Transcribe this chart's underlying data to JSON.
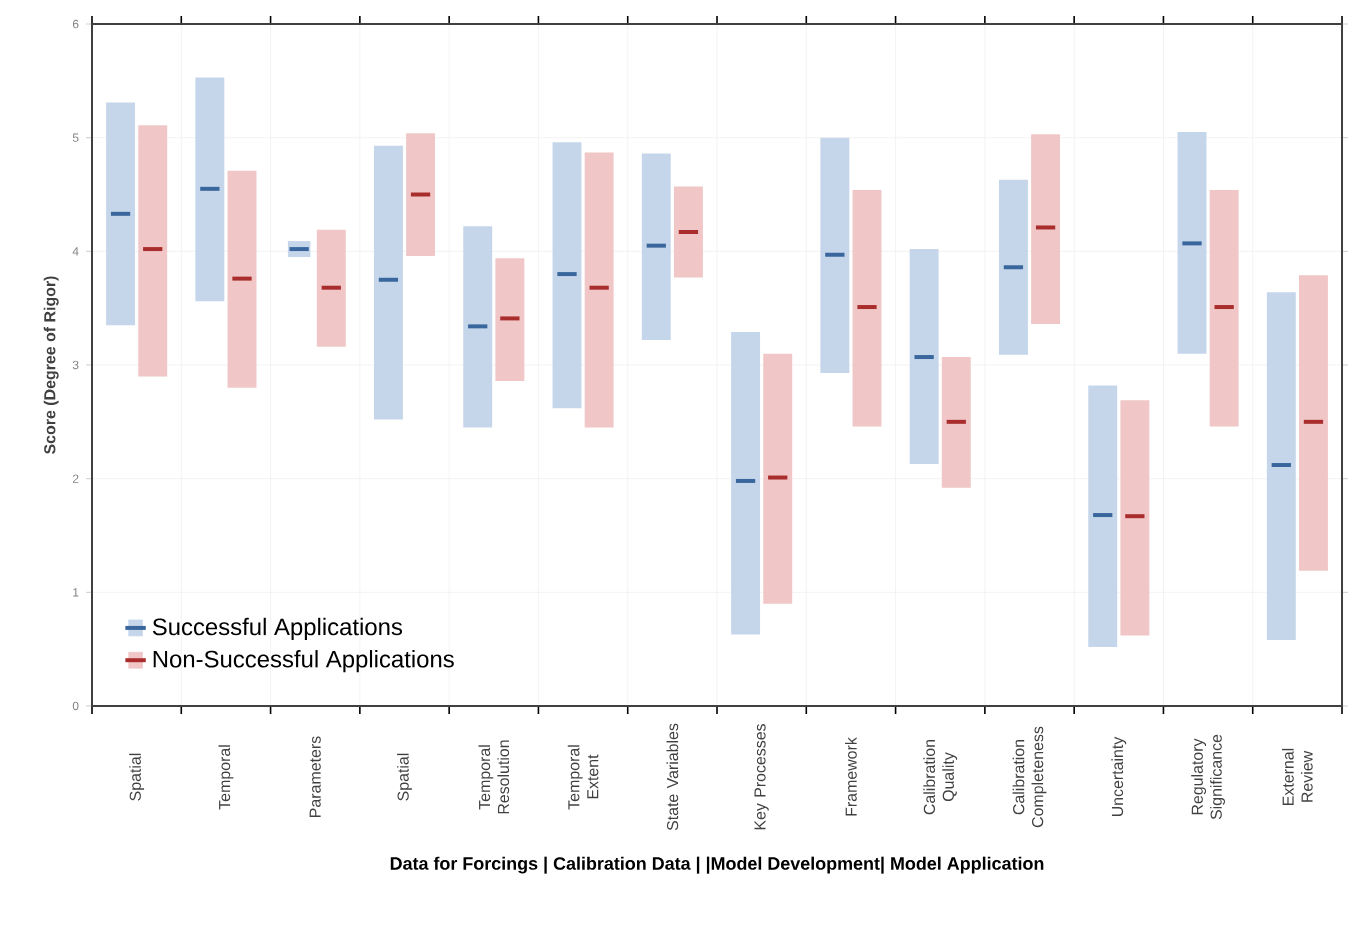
{
  "chart_data": {
    "type": "box",
    "categories": [
      "Spatial",
      "Temporal",
      "Parameters",
      "Spatial",
      "Temporal Resolution",
      "Temporal Extent",
      "State Variables",
      "Key Processes",
      "Framework",
      "Calibration Quality",
      "Calibration Completeness",
      "Uncertainty",
      "Regulatory Significance",
      "External Review"
    ],
    "series": [
      {
        "name": "Successful Applications",
        "color": "#c5d6ea",
        "boxes": [
          {
            "low": 3.35,
            "q1": 3.35,
            "median": 4.33,
            "q3": 5.31,
            "high": 5.31
          },
          {
            "low": 3.56,
            "q1": 3.56,
            "median": 4.55,
            "q3": 5.53,
            "high": 5.53
          },
          {
            "low": 4.02,
            "q1": 4.02,
            "median": 4.02,
            "q3": 4.02,
            "high": 4.02
          },
          {
            "low": 2.52,
            "q1": 2.52,
            "median": 3.75,
            "q3": 4.93,
            "high": 4.93
          },
          {
            "low": 2.45,
            "q1": 2.45,
            "median": 3.34,
            "q3": 4.22,
            "high": 4.22
          },
          {
            "low": 2.62,
            "q1": 2.62,
            "median": 3.8,
            "q3": 4.96,
            "high": 4.96
          },
          {
            "low": 3.22,
            "q1": 3.22,
            "median": 4.05,
            "q3": 4.86,
            "high": 4.86
          },
          {
            "low": 0.63,
            "q1": 0.63,
            "median": 1.98,
            "q3": 3.29,
            "high": 3.29
          },
          {
            "low": 2.93,
            "q1": 2.93,
            "median": 3.97,
            "q3": 5.0,
            "high": 5.0
          },
          {
            "low": 2.13,
            "q1": 2.13,
            "median": 3.07,
            "q3": 4.02,
            "high": 4.02
          },
          {
            "low": 3.09,
            "q1": 3.09,
            "median": 3.86,
            "q3": 4.63,
            "high": 4.63
          },
          {
            "low": 0.52,
            "q1": 0.52,
            "median": 1.68,
            "q3": 2.82,
            "high": 2.82
          },
          {
            "low": 3.1,
            "q1": 3.1,
            "median": 4.07,
            "q3": 5.05,
            "high": 5.05
          },
          {
            "low": 0.58,
            "q1": 0.58,
            "median": 2.12,
            "q3": 3.64,
            "high": 3.64
          }
        ]
      },
      {
        "name": "Non-Successful Applications",
        "color": "#f0c6c6",
        "boxes": [
          {
            "low": 2.9,
            "q1": 2.9,
            "median": 4.02,
            "q3": 5.11,
            "high": 5.11
          },
          {
            "low": 2.8,
            "q1": 2.8,
            "median": 3.76,
            "q3": 4.71,
            "high": 4.71
          },
          {
            "low": 3.16,
            "q1": 3.16,
            "median": 3.68,
            "q3": 4.19,
            "high": 4.19
          },
          {
            "low": 3.96,
            "q1": 3.96,
            "median": 4.5,
            "q3": 5.04,
            "high": 5.04
          },
          {
            "low": 2.86,
            "q1": 2.86,
            "median": 3.41,
            "q3": 3.94,
            "high": 3.94
          },
          {
            "low": 2.45,
            "q1": 2.45,
            "median": 3.68,
            "q3": 4.87,
            "high": 4.87
          },
          {
            "low": 3.77,
            "q1": 3.77,
            "median": 4.17,
            "q3": 4.57,
            "high": 4.57
          },
          {
            "low": 0.9,
            "q1": 0.9,
            "median": 2.01,
            "q3": 3.1,
            "high": 3.1
          },
          {
            "low": 2.46,
            "q1": 2.46,
            "median": 3.51,
            "q3": 4.54,
            "high": 4.54
          },
          {
            "low": 1.92,
            "q1": 1.92,
            "median": 2.5,
            "q3": 3.07,
            "high": 3.07
          },
          {
            "low": 3.36,
            "q1": 3.36,
            "median": 4.21,
            "q3": 5.03,
            "high": 5.03
          },
          {
            "low": 0.62,
            "q1": 0.62,
            "median": 1.67,
            "q3": 2.69,
            "high": 2.69
          },
          {
            "low": 2.46,
            "q1": 2.46,
            "median": 3.51,
            "q3": 4.54,
            "high": 4.54
          },
          {
            "low": 1.19,
            "q1": 1.19,
            "median": 2.5,
            "q3": 3.79,
            "high": 3.79
          }
        ]
      }
    ],
    "xlabel": "Data for Forcings | Calibration Data | |Model Development| Model Application",
    "ylabel": "Score (Degree of Rigor)",
    "ylim": [
      0,
      6
    ],
    "yticks": [
      0,
      1,
      2,
      3,
      4,
      5,
      6
    ],
    "grid": true,
    "legend": "bottom left"
  }
}
